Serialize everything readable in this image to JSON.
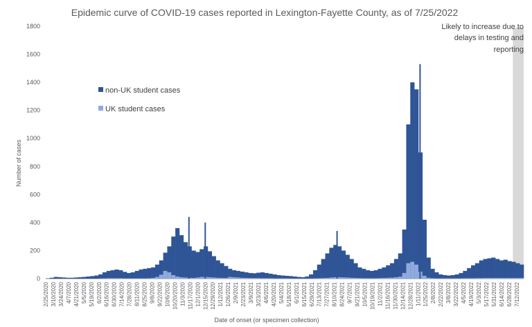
{
  "chart_data": {
    "type": "bar",
    "stacked": true,
    "title": "Epidemic curve of COVID-19 cases reported in Lexington-Fayette County, as of 7/25/2022",
    "xlabel": "Date of onset (or specimen collection)",
    "ylabel": "Number of cases",
    "ylim": [
      0,
      1800
    ],
    "yticks": [
      0,
      200,
      400,
      600,
      800,
      1000,
      1200,
      1400,
      1600,
      1800
    ],
    "grid": false,
    "legend_position": "upper-left",
    "x_start": "2/25/2020",
    "x_end": "7/25/2022",
    "xtick_labels": [
      "2/25/2020",
      "3/10/2020",
      "3/24/2020",
      "4/7/2020",
      "4/21/2020",
      "5/5/2020",
      "5/19/2020",
      "6/2/2020",
      "6/16/2020",
      "6/30/2020",
      "7/14/2020",
      "7/28/2020",
      "8/11/2020",
      "8/25/2020",
      "9/8/2020",
      "9/22/2020",
      "10/6/2020",
      "10/20/2020",
      "11/3/2020",
      "11/17/2020",
      "12/1/2020",
      "12/15/2020",
      "12/29/2020",
      "1/12/2021",
      "1/26/2021",
      "2/9/2021",
      "2/23/2021",
      "3/9/2021",
      "3/23/2021",
      "4/6/2021",
      "4/20/2021",
      "5/4/2021",
      "5/18/2021",
      "6/1/2021",
      "6/15/2021",
      "6/29/2021",
      "7/13/2021",
      "7/27/2021",
      "8/10/2021",
      "8/24/2021",
      "9/7/2021",
      "9/21/2021",
      "10/5/2021",
      "10/19/2021",
      "11/2/2021",
      "11/16/2021",
      "11/30/2021",
      "12/14/2021",
      "12/28/2021",
      "1/11/2022",
      "1/25/2022",
      "2/8/2022",
      "2/22/2022",
      "3/8/2022",
      "3/22/2022",
      "4/5/2022",
      "4/19/2022",
      "5/3/2022",
      "5/17/2022",
      "5/31/2022",
      "6/14/2022",
      "6/28/2022",
      "7/12/2022"
    ],
    "series": [
      {
        "name": "non-UK student cases",
        "color": "#2f5597",
        "weekly_values": [
          2,
          6,
          12,
          10,
          8,
          6,
          6,
          8,
          10,
          12,
          15,
          18,
          22,
          30,
          45,
          55,
          60,
          65,
          60,
          48,
          40,
          45,
          55,
          65,
          70,
          75,
          80,
          100,
          130,
          185,
          230,
          300,
          360,
          310,
          260,
          230,
          200,
          190,
          210,
          230,
          195,
          160,
          130,
          110,
          90,
          70,
          60,
          55,
          50,
          45,
          40,
          38,
          42,
          45,
          40,
          35,
          30,
          25,
          22,
          20,
          18,
          15,
          12,
          10,
          15,
          30,
          60,
          100,
          140,
          180,
          220,
          240,
          230,
          200,
          170,
          140,
          110,
          80,
          70,
          60,
          55,
          60,
          70,
          80,
          95,
          110,
          140,
          180,
          350,
          1100,
          1400,
          1350,
          900,
          420,
          150,
          70,
          45,
          30,
          25,
          22,
          25,
          30,
          40,
          55,
          75,
          95,
          110,
          130,
          140,
          145,
          150,
          140,
          130,
          135,
          125,
          120,
          110,
          100
        ]
      },
      {
        "name": "UK student cases",
        "color": "#8faadc",
        "weekly_values": [
          0,
          0,
          0,
          0,
          0,
          0,
          0,
          0,
          0,
          0,
          0,
          0,
          0,
          1,
          2,
          3,
          3,
          3,
          3,
          2,
          2,
          2,
          2,
          2,
          2,
          3,
          5,
          12,
          28,
          55,
          45,
          25,
          15,
          10,
          8,
          6,
          5,
          8,
          12,
          12,
          10,
          8,
          6,
          5,
          5,
          12,
          10,
          8,
          6,
          5,
          4,
          4,
          4,
          3,
          3,
          3,
          2,
          2,
          2,
          2,
          1,
          1,
          1,
          1,
          1,
          1,
          2,
          3,
          4,
          5,
          8,
          10,
          10,
          9,
          8,
          6,
          5,
          4,
          3,
          3,
          3,
          3,
          4,
          5,
          6,
          7,
          10,
          14,
          40,
          110,
          120,
          100,
          50,
          20,
          6,
          3,
          2,
          2,
          2,
          2,
          2,
          2,
          2,
          3,
          3,
          3,
          4,
          4,
          5,
          5,
          5,
          5,
          5,
          5,
          5,
          5,
          5,
          5
        ]
      }
    ],
    "notable_peaks": [
      {
        "date": "11/2020",
        "value": 440
      },
      {
        "date": "12/2020",
        "value": 400
      },
      {
        "date": "8/2021",
        "value": 340
      },
      {
        "date": "1/2022",
        "value": 1530
      }
    ],
    "annotation": {
      "lines": [
        "Likely to increase due to",
        "delays in testing and",
        "reporting"
      ],
      "shade_color": "#d9d9d9",
      "shade_start": "7/5/2022",
      "shade_end": "7/25/2022"
    }
  }
}
